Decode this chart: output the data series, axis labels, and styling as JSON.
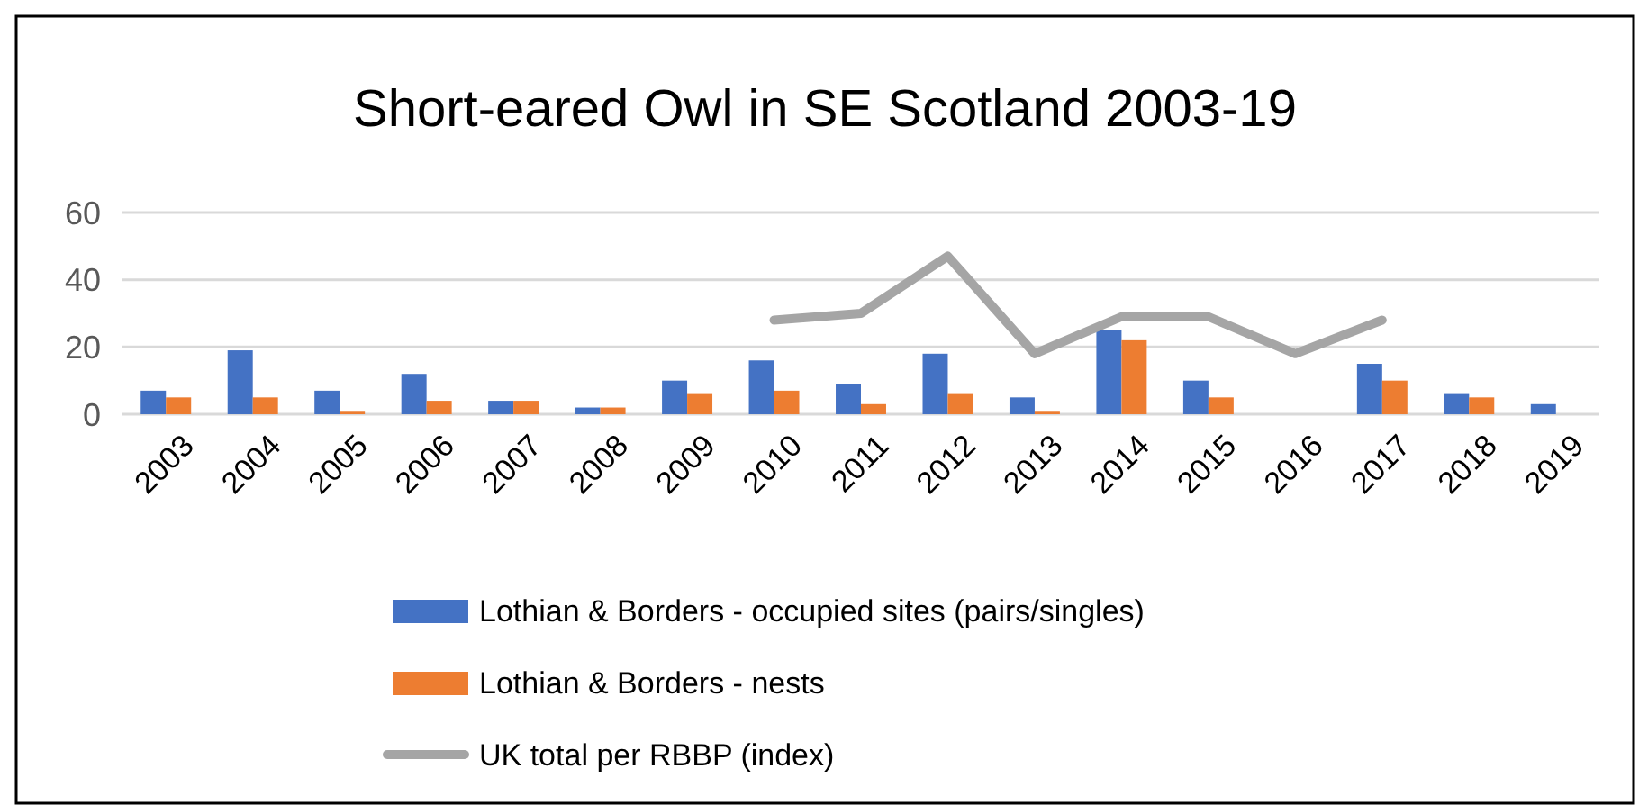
{
  "chart_data": {
    "type": "bar",
    "title": "Short-eared Owl in SE Scotland 2003-19",
    "categories": [
      "2003",
      "2004",
      "2005",
      "2006",
      "2007",
      "2008",
      "2009",
      "2010",
      "2011",
      "2012",
      "2013",
      "2014",
      "2015",
      "2016",
      "2017",
      "2018",
      "2019"
    ],
    "series": [
      {
        "name": "Lothian & Borders - occupied sites (pairs/singles)",
        "color": "#4472c4",
        "values": [
          7,
          19,
          7,
          12,
          4,
          2,
          10,
          16,
          9,
          18,
          5,
          25,
          10,
          null,
          15,
          6,
          3
        ]
      },
      {
        "name": "Lothian & Borders - nests",
        "color": "#ed7d31",
        "values": [
          5,
          5,
          1,
          4,
          4,
          2,
          6,
          7,
          3,
          6,
          1,
          22,
          5,
          null,
          10,
          5,
          null
        ]
      },
      {
        "name": "UK total per RBBP (index)",
        "type": "line",
        "color": "#a5a5a5",
        "values": [
          null,
          null,
          null,
          null,
          null,
          null,
          null,
          28,
          30,
          47,
          18,
          29,
          29,
          18,
          28,
          null,
          null
        ]
      }
    ],
    "ylim": [
      0,
      60
    ],
    "yticks": [
      0,
      20,
      40,
      60
    ],
    "grid": "y",
    "legend": "bottom"
  }
}
